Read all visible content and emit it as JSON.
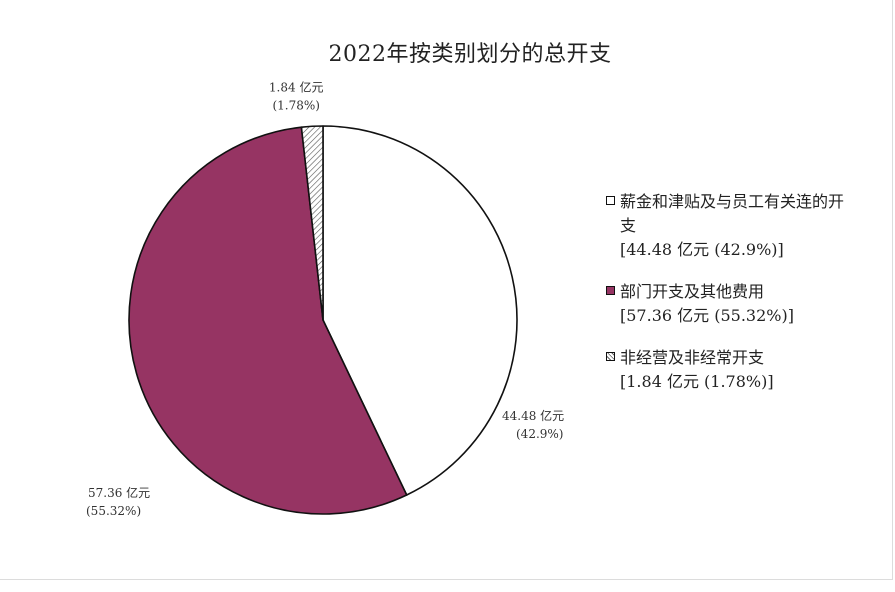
{
  "chart_data": {
    "type": "pie",
    "title": "2022年按类别划分的总开支",
    "unit": "亿元",
    "slices": [
      {
        "name": "薪金和津贴及与员工有关连的开支",
        "value": 44.48,
        "percent": 42.9,
        "value_label": "44.48 亿元",
        "percent_label": "(42.9%)",
        "legend_value": "[44.48 亿元 (42.9%)]",
        "color": "#ffffff",
        "pattern": "none"
      },
      {
        "name": "部门开支及其他费用",
        "value": 57.36,
        "percent": 55.32,
        "value_label": "57.36 亿元",
        "percent_label": "(55.32%)",
        "legend_value": "[57.36 亿元 (55.32%)]",
        "color": "#963463",
        "pattern": "none"
      },
      {
        "name": "非经营及非经常开支",
        "value": 1.84,
        "percent": 1.78,
        "value_label": "1.84 亿元",
        "percent_label": "(1.78%)",
        "legend_value": "[1.84 亿元 (1.78%)]",
        "color": "#ffffff",
        "pattern": "diagonal-hatch"
      }
    ],
    "start_angle": "12 o'clock",
    "direction": "clockwise",
    "legend_position": "right"
  }
}
